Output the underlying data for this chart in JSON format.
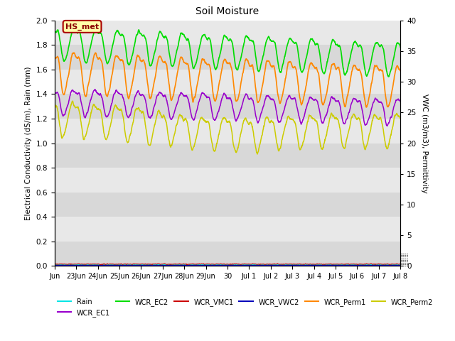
{
  "title": "Soil Moisture",
  "ylabel_left": "Electrical Conductivity (dS/m), Rain (mm)",
  "ylabel_right": "VWC (m3/m3), Permittivity",
  "ylim_left": [
    0,
    2.0
  ],
  "ylim_right": [
    0,
    40
  ],
  "colors": {
    "Rain": "#00e5e5",
    "WCR_EC1": "#9900cc",
    "WCR_EC2": "#00dd00",
    "WCR_VMC1": "#cc0000",
    "WCR_VWC2": "#0000bb",
    "WCR_Perm1": "#ff8800",
    "WCR_Perm2": "#cccc00"
  },
  "tick_positions": [
    0,
    1,
    2,
    3,
    4,
    5,
    6,
    7,
    8,
    9,
    10,
    11,
    12,
    13,
    14,
    15,
    16
  ],
  "tick_labels": [
    "Jun",
    "23Jun",
    "24Jun",
    "25Jun",
    "26Jun",
    "27Jun",
    "28Jun",
    "29Jun",
    "30",
    "Jul 1",
    "Jul 2",
    "Jul 3",
    "Jul 4",
    "Jul 5",
    "Jul 6",
    "Jul 7",
    "Jul 8"
  ],
  "yticks_left": [
    0.0,
    0.2,
    0.4,
    0.6,
    0.8,
    1.0,
    1.2,
    1.4,
    1.6,
    1.8,
    2.0
  ],
  "yticks_right": [
    0,
    5,
    10,
    15,
    20,
    25,
    30,
    35,
    40
  ],
  "hs_met_label": "HS_met",
  "hs_met_bg": "#ffffaa",
  "hs_met_border": "#aa0000",
  "band_colors": [
    "#d8d8d8",
    "#e8e8e8"
  ],
  "legend_order": [
    "Rain",
    "WCR_EC1",
    "WCR_EC2",
    "WCR_VMC1",
    "WCR_VWC2",
    "WCR_Perm1",
    "WCR_Perm2"
  ]
}
